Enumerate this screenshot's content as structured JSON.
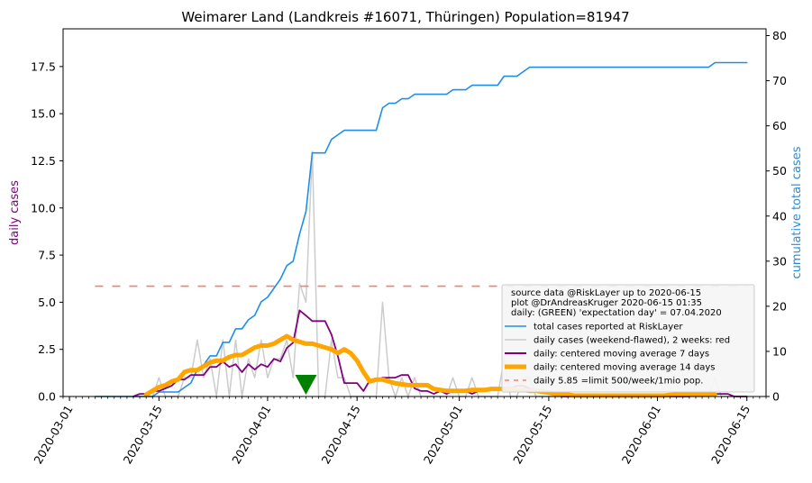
{
  "chart_data": {
    "type": "line",
    "title": "Weimarer Land (Landkreis #16071, Thüringen) Population=81947",
    "ylabel_left": "daily cases",
    "ylabel_right": "cumulative total cases",
    "colors": {
      "left_axis_label": "#800080",
      "right_axis_label": "#1f8fe6",
      "total": "#1f8fe6",
      "daily": "#cccccc",
      "ma7": "#800080",
      "ma14": "#ffa500",
      "limit": "#f08070",
      "expectation": "#008000"
    },
    "left_ylim": [
      0,
      19.5
    ],
    "right_ylim": [
      0,
      81.5
    ],
    "left_yticks": [
      "0.0",
      "2.5",
      "5.0",
      "7.5",
      "10.0",
      "12.5",
      "15.0",
      "17.5"
    ],
    "right_yticks": [
      "0",
      "10",
      "20",
      "30",
      "40",
      "50",
      "60",
      "70",
      "80"
    ],
    "xlim": [
      "2020-02-29",
      "2020-06-18"
    ],
    "x_major_ticks": [
      "2020-03-01",
      "2020-03-15",
      "2020-04-01",
      "2020-04-15",
      "2020-05-01",
      "2020-05-15",
      "2020-06-01",
      "2020-06-15"
    ],
    "legend": {
      "position": "lower right",
      "header": [
        "source data @RiskLayer up to 2020-06-15",
        "plot @DrAndreasKruger 2020-06-15 01:35",
        "daily: (GREEN) 'expectation day' = 07.04.2020"
      ],
      "entries": [
        {
          "label": "total cases reported at RiskLayer",
          "key": "total"
        },
        {
          "label": "daily cases (weekend-flawed), 2 weeks: red",
          "key": "daily"
        },
        {
          "label": "daily: centered moving average 7 days",
          "key": "ma7"
        },
        {
          "label": "daily: centered moving average 14 days",
          "key": "ma14"
        },
        {
          "label": "daily 5.85 =limit 500/week/1mio pop.",
          "key": "limit"
        }
      ]
    },
    "limit_value": 5.85,
    "limit_range": [
      "2020-03-05",
      "2020-06-15"
    ],
    "expectation_day": "2020-04-07",
    "series": {
      "total": [
        [
          "2020-03-05",
          0
        ],
        [
          "2020-03-10",
          0
        ],
        [
          "2020-03-11",
          0
        ],
        [
          "2020-03-12",
          0
        ],
        [
          "2020-03-13",
          0
        ],
        [
          "2020-03-14",
          0
        ],
        [
          "2020-03-15",
          1
        ],
        [
          "2020-03-16",
          1
        ],
        [
          "2020-03-17",
          1
        ],
        [
          "2020-03-18",
          1
        ],
        [
          "2020-03-19",
          2
        ],
        [
          "2020-03-20",
          3
        ],
        [
          "2020-03-21",
          6
        ],
        [
          "2020-03-22",
          7
        ],
        [
          "2020-03-23",
          9
        ],
        [
          "2020-03-24",
          9
        ],
        [
          "2020-03-25",
          12
        ],
        [
          "2020-03-26",
          12
        ],
        [
          "2020-03-27",
          15
        ],
        [
          "2020-03-28",
          15
        ],
        [
          "2020-03-29",
          17
        ],
        [
          "2020-03-30",
          18
        ],
        [
          "2020-03-31",
          21
        ],
        [
          "2020-04-01",
          22
        ],
        [
          "2020-04-02",
          24
        ],
        [
          "2020-04-03",
          26
        ],
        [
          "2020-04-04",
          29
        ],
        [
          "2020-04-05",
          30
        ],
        [
          "2020-04-06",
          36
        ],
        [
          "2020-04-07",
          41
        ],
        [
          "2020-04-08",
          54
        ],
        [
          "2020-04-09",
          54
        ],
        [
          "2020-04-10",
          54
        ],
        [
          "2020-04-11",
          57
        ],
        [
          "2020-04-12",
          58
        ],
        [
          "2020-04-13",
          59
        ],
        [
          "2020-04-14",
          59
        ],
        [
          "2020-04-15",
          59
        ],
        [
          "2020-04-16",
          59
        ],
        [
          "2020-04-17",
          59
        ],
        [
          "2020-04-18",
          59
        ],
        [
          "2020-04-19",
          64
        ],
        [
          "2020-04-20",
          65
        ],
        [
          "2020-04-21",
          65
        ],
        [
          "2020-04-22",
          66
        ],
        [
          "2020-04-23",
          66
        ],
        [
          "2020-04-24",
          67
        ],
        [
          "2020-04-25",
          67
        ],
        [
          "2020-04-26",
          67
        ],
        [
          "2020-04-27",
          67
        ],
        [
          "2020-04-28",
          67
        ],
        [
          "2020-04-29",
          67
        ],
        [
          "2020-04-30",
          68
        ],
        [
          "2020-05-01",
          68
        ],
        [
          "2020-05-02",
          68
        ],
        [
          "2020-05-03",
          69
        ],
        [
          "2020-05-04",
          69
        ],
        [
          "2020-05-05",
          69
        ],
        [
          "2020-05-06",
          69
        ],
        [
          "2020-05-07",
          69
        ],
        [
          "2020-05-08",
          71
        ],
        [
          "2020-05-09",
          71
        ],
        [
          "2020-05-10",
          71
        ],
        [
          "2020-05-11",
          72
        ],
        [
          "2020-05-12",
          73
        ],
        [
          "2020-05-13",
          73
        ],
        [
          "2020-05-14",
          73
        ],
        [
          "2020-05-15",
          73
        ],
        [
          "2020-05-31",
          73
        ],
        [
          "2020-06-09",
          73
        ],
        [
          "2020-06-10",
          74
        ],
        [
          "2020-06-11",
          74
        ],
        [
          "2020-06-15",
          74
        ]
      ],
      "daily": [
        [
          "2020-03-05",
          0
        ],
        [
          "2020-03-10",
          0
        ],
        [
          "2020-03-14",
          0
        ],
        [
          "2020-03-15",
          1
        ],
        [
          "2020-03-16",
          0
        ],
        [
          "2020-03-17",
          0
        ],
        [
          "2020-03-18",
          0
        ],
        [
          "2020-03-19",
          1
        ],
        [
          "2020-03-20",
          1
        ],
        [
          "2020-03-21",
          3
        ],
        [
          "2020-03-22",
          1
        ],
        [
          "2020-03-23",
          2
        ],
        [
          "2020-03-24",
          0
        ],
        [
          "2020-03-25",
          3
        ],
        [
          "2020-03-26",
          0
        ],
        [
          "2020-03-27",
          3
        ],
        [
          "2020-03-28",
          0
        ],
        [
          "2020-03-29",
          2
        ],
        [
          "2020-03-30",
          1
        ],
        [
          "2020-03-31",
          3
        ],
        [
          "2020-04-01",
          1
        ],
        [
          "2020-04-02",
          2
        ],
        [
          "2020-04-03",
          2
        ],
        [
          "2020-04-04",
          3
        ],
        [
          "2020-04-05",
          1
        ],
        [
          "2020-04-06",
          6
        ],
        [
          "2020-04-07",
          5
        ],
        [
          "2020-04-08",
          13
        ],
        [
          "2020-04-09",
          0
        ],
        [
          "2020-04-10",
          0
        ],
        [
          "2020-04-11",
          3
        ],
        [
          "2020-04-12",
          1
        ],
        [
          "2020-04-13",
          1
        ],
        [
          "2020-04-14",
          0
        ],
        [
          "2020-04-15",
          0
        ],
        [
          "2020-04-16",
          0
        ],
        [
          "2020-04-17",
          0
        ],
        [
          "2020-04-18",
          0
        ],
        [
          "2020-04-19",
          5
        ],
        [
          "2020-04-20",
          1
        ],
        [
          "2020-04-21",
          0
        ],
        [
          "2020-04-22",
          1
        ],
        [
          "2020-04-23",
          0
        ],
        [
          "2020-04-24",
          1
        ],
        [
          "2020-04-25",
          0
        ],
        [
          "2020-04-26",
          0
        ],
        [
          "2020-04-27",
          0
        ],
        [
          "2020-04-28",
          0
        ],
        [
          "2020-04-29",
          0
        ],
        [
          "2020-04-30",
          1
        ],
        [
          "2020-05-01",
          0
        ],
        [
          "2020-05-02",
          0
        ],
        [
          "2020-05-03",
          1
        ],
        [
          "2020-05-04",
          0
        ],
        [
          "2020-05-05",
          0
        ],
        [
          "2020-05-06",
          0
        ],
        [
          "2020-05-07",
          0
        ],
        [
          "2020-05-08",
          2
        ],
        [
          "2020-05-09",
          0
        ],
        [
          "2020-05-10",
          0
        ],
        [
          "2020-05-11",
          1
        ],
        [
          "2020-05-12",
          1
        ],
        [
          "2020-05-13",
          0
        ],
        [
          "2020-05-31",
          0
        ],
        [
          "2020-06-09",
          0
        ],
        [
          "2020-06-10",
          1
        ],
        [
          "2020-06-11",
          0
        ],
        [
          "2020-06-15",
          0
        ]
      ],
      "ma7": [
        [
          "2020-03-11",
          0
        ],
        [
          "2020-03-12",
          0.14
        ],
        [
          "2020-03-13",
          0.14
        ],
        [
          "2020-03-14",
          0.29
        ],
        [
          "2020-03-15",
          0.29
        ],
        [
          "2020-03-16",
          0.43
        ],
        [
          "2020-03-17",
          0.57
        ],
        [
          "2020-03-18",
          0.9
        ],
        [
          "2020-03-19",
          0.9
        ],
        [
          "2020-03-20",
          1.14
        ],
        [
          "2020-03-21",
          1.14
        ],
        [
          "2020-03-22",
          1.14
        ],
        [
          "2020-03-23",
          1.57
        ],
        [
          "2020-03-24",
          1.57
        ],
        [
          "2020-03-25",
          1.85
        ],
        [
          "2020-03-26",
          1.57
        ],
        [
          "2020-03-27",
          1.71
        ],
        [
          "2020-03-28",
          1.29
        ],
        [
          "2020-03-29",
          1.71
        ],
        [
          "2020-03-30",
          1.43
        ],
        [
          "2020-03-31",
          1.71
        ],
        [
          "2020-04-01",
          1.57
        ],
        [
          "2020-04-02",
          2.0
        ],
        [
          "2020-04-03",
          1.86
        ],
        [
          "2020-04-04",
          2.57
        ],
        [
          "2020-04-05",
          2.86
        ],
        [
          "2020-04-06",
          4.57
        ],
        [
          "2020-04-07",
          4.29
        ],
        [
          "2020-04-08",
          4.0
        ],
        [
          "2020-04-09",
          4.0
        ],
        [
          "2020-04-10",
          4.0
        ],
        [
          "2020-04-11",
          3.29
        ],
        [
          "2020-04-12",
          2.14
        ],
        [
          "2020-04-13",
          0.71
        ],
        [
          "2020-04-14",
          0.71
        ],
        [
          "2020-04-15",
          0.71
        ],
        [
          "2020-04-16",
          0.29
        ],
        [
          "2020-04-17",
          0.86
        ],
        [
          "2020-04-18",
          0.86
        ],
        [
          "2020-04-19",
          1.0
        ],
        [
          "2020-04-20",
          1.0
        ],
        [
          "2020-04-21",
          1.0
        ],
        [
          "2020-04-22",
          1.14
        ],
        [
          "2020-04-23",
          1.14
        ],
        [
          "2020-04-24",
          0.43
        ],
        [
          "2020-04-25",
          0.29
        ],
        [
          "2020-04-26",
          0.29
        ],
        [
          "2020-04-27",
          0.14
        ],
        [
          "2020-04-28",
          0.29
        ],
        [
          "2020-04-29",
          0.14
        ],
        [
          "2020-04-30",
          0.29
        ],
        [
          "2020-05-01",
          0.29
        ],
        [
          "2020-05-02",
          0.29
        ],
        [
          "2020-05-03",
          0.14
        ],
        [
          "2020-05-04",
          0.29
        ],
        [
          "2020-05-05",
          0.29
        ],
        [
          "2020-05-06",
          0.43
        ],
        [
          "2020-05-07",
          0.43
        ],
        [
          "2020-05-08",
          0.43
        ],
        [
          "2020-05-09",
          0.43
        ],
        [
          "2020-05-10",
          0.57
        ],
        [
          "2020-05-11",
          0.57
        ],
        [
          "2020-05-12",
          0.43
        ],
        [
          "2020-05-13",
          0.29
        ],
        [
          "2020-05-14",
          0.29
        ],
        [
          "2020-05-15",
          0.14
        ],
        [
          "2020-05-16",
          0.14
        ],
        [
          "2020-05-17",
          0
        ],
        [
          "2020-06-06",
          0
        ],
        [
          "2020-06-07",
          0.14
        ],
        [
          "2020-06-08",
          0.14
        ],
        [
          "2020-06-09",
          0.14
        ],
        [
          "2020-06-10",
          0.14
        ],
        [
          "2020-06-11",
          0.14
        ],
        [
          "2020-06-12",
          0.14
        ],
        [
          "2020-06-13",
          0
        ],
        [
          "2020-06-15",
          0
        ]
      ],
      "ma14": [
        [
          "2020-03-13",
          0.1
        ],
        [
          "2020-03-14",
          0.3
        ],
        [
          "2020-03-15",
          0.5
        ],
        [
          "2020-03-16",
          0.6
        ],
        [
          "2020-03-17",
          0.8
        ],
        [
          "2020-03-18",
          0.9
        ],
        [
          "2020-03-19",
          1.3
        ],
        [
          "2020-03-20",
          1.4
        ],
        [
          "2020-03-21",
          1.4
        ],
        [
          "2020-03-22",
          1.6
        ],
        [
          "2020-03-23",
          1.8
        ],
        [
          "2020-03-24",
          1.9
        ],
        [
          "2020-03-25",
          1.9
        ],
        [
          "2020-03-26",
          2.1
        ],
        [
          "2020-03-27",
          2.2
        ],
        [
          "2020-03-28",
          2.2
        ],
        [
          "2020-03-29",
          2.4
        ],
        [
          "2020-03-30",
          2.6
        ],
        [
          "2020-03-31",
          2.7
        ],
        [
          "2020-04-01",
          2.7
        ],
        [
          "2020-04-02",
          2.8
        ],
        [
          "2020-04-03",
          3.0
        ],
        [
          "2020-04-04",
          3.2
        ],
        [
          "2020-04-05",
          3.0
        ],
        [
          "2020-04-06",
          2.9
        ],
        [
          "2020-04-07",
          2.8
        ],
        [
          "2020-04-08",
          2.8
        ],
        [
          "2020-04-09",
          2.7
        ],
        [
          "2020-04-10",
          2.6
        ],
        [
          "2020-04-11",
          2.5
        ],
        [
          "2020-04-12",
          2.3
        ],
        [
          "2020-04-13",
          2.5
        ],
        [
          "2020-04-14",
          2.3
        ],
        [
          "2020-04-15",
          1.9
        ],
        [
          "2020-04-16",
          1.3
        ],
        [
          "2020-04-17",
          0.8
        ],
        [
          "2020-04-18",
          0.9
        ],
        [
          "2020-04-19",
          0.9
        ],
        [
          "2020-04-20",
          0.8
        ],
        [
          "2020-04-21",
          0.7
        ],
        [
          "2020-04-22",
          0.65
        ],
        [
          "2020-04-23",
          0.6
        ],
        [
          "2020-04-24",
          0.6
        ],
        [
          "2020-04-25",
          0.6
        ],
        [
          "2020-04-26",
          0.6
        ],
        [
          "2020-04-27",
          0.4
        ],
        [
          "2020-04-28",
          0.35
        ],
        [
          "2020-04-29",
          0.3
        ],
        [
          "2020-04-30",
          0.3
        ],
        [
          "2020-05-01",
          0.3
        ],
        [
          "2020-05-02",
          0.3
        ],
        [
          "2020-05-03",
          0.35
        ],
        [
          "2020-05-04",
          0.35
        ],
        [
          "2020-05-05",
          0.35
        ],
        [
          "2020-05-06",
          0.4
        ],
        [
          "2020-05-07",
          0.4
        ],
        [
          "2020-05-08",
          0.4
        ],
        [
          "2020-05-09",
          0.4
        ],
        [
          "2020-05-10",
          0.35
        ],
        [
          "2020-05-11",
          0.35
        ],
        [
          "2020-05-12",
          0.3
        ],
        [
          "2020-05-13",
          0.3
        ],
        [
          "2020-05-14",
          0.25
        ],
        [
          "2020-05-15",
          0.2
        ],
        [
          "2020-05-16",
          0.15
        ],
        [
          "2020-05-17",
          0.1
        ],
        [
          "2020-05-18",
          0.1
        ],
        [
          "2020-05-19",
          0.05
        ],
        [
          "2020-06-01",
          0.05
        ],
        [
          "2020-06-02",
          0.05
        ],
        [
          "2020-06-03",
          0.08
        ],
        [
          "2020-06-04",
          0.1
        ],
        [
          "2020-06-05",
          0.1
        ],
        [
          "2020-06-06",
          0.1
        ],
        [
          "2020-06-07",
          0.1
        ],
        [
          "2020-06-08",
          0.1
        ],
        [
          "2020-06-09",
          0.1
        ],
        [
          "2020-06-10",
          0.1
        ]
      ]
    }
  }
}
